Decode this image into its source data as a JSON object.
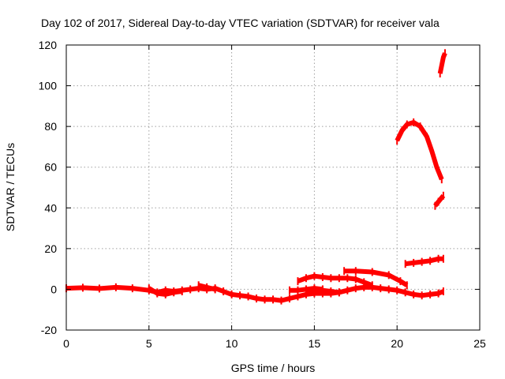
{
  "chart_data": {
    "type": "scatter",
    "title": "Day 102 of 2017, Sidereal Day-to-day VTEC variation (SDTVAR) for receiver vala",
    "xlabel": "GPS time / hours",
    "ylabel": "SDTVAR / TECUs",
    "xlim": [
      0,
      25
    ],
    "ylim": [
      -20,
      120
    ],
    "xticks": [
      "0",
      "5",
      "10",
      "15",
      "20",
      "25"
    ],
    "yticks": [
      "-20",
      "0",
      "20",
      "40",
      "60",
      "80",
      "100",
      "120"
    ],
    "grid": true,
    "legend": false,
    "series_color": "#ff0000",
    "series": [
      {
        "values": [
          [
            0,
            0.5
          ],
          [
            1,
            0.8
          ],
          [
            2,
            0.4
          ],
          [
            3,
            1
          ],
          [
            4,
            0.5
          ],
          [
            5,
            -0.5
          ],
          [
            5.5,
            -1.5
          ],
          [
            6,
            -0.5
          ],
          [
            6.5,
            -1
          ],
          [
            7,
            -0.5
          ],
          [
            7.5,
            0
          ],
          [
            8,
            0.5
          ],
          [
            8.5,
            0
          ],
          [
            9,
            0.5
          ],
          [
            9.5,
            -1
          ],
          [
            10,
            -2.5
          ],
          [
            10.5,
            -3
          ],
          [
            11,
            -3.5
          ],
          [
            11.5,
            -4.5
          ],
          [
            12,
            -5
          ],
          [
            12.5,
            -5
          ],
          [
            13,
            -5.5
          ],
          [
            13.5,
            -4.5
          ],
          [
            14,
            -3.5
          ],
          [
            14.5,
            -2.5
          ],
          [
            15,
            -2
          ],
          [
            15.5,
            -2
          ],
          [
            16,
            -2
          ],
          [
            16.5,
            -1.5
          ],
          [
            17,
            -0.5
          ],
          [
            17.5,
            0.5
          ],
          [
            18,
            1
          ],
          [
            18.5,
            1
          ],
          [
            19,
            0.5
          ],
          [
            19.5,
            0
          ],
          [
            20,
            -0.5
          ],
          [
            20.5,
            -1.5
          ],
          [
            21,
            -2.5
          ],
          [
            21.5,
            -3
          ],
          [
            22,
            -2.5
          ],
          [
            22.5,
            -2
          ],
          [
            22.8,
            -1
          ]
        ]
      },
      {
        "values": [
          [
            5,
            0.5
          ],
          [
            5.5,
            -2
          ],
          [
            6,
            -2.5
          ],
          [
            6.5,
            -1.5
          ],
          [
            7,
            -1
          ]
        ]
      },
      {
        "values": [
          [
            8,
            2
          ],
          [
            8.5,
            1
          ],
          [
            9,
            0
          ]
        ]
      },
      {
        "values": [
          [
            13.5,
            -0.5
          ],
          [
            14,
            -0.5
          ],
          [
            14.5,
            0
          ],
          [
            15,
            0.5
          ],
          [
            15.5,
            0
          ]
        ]
      },
      {
        "values": [
          [
            14.5,
            -1
          ],
          [
            15,
            -1
          ],
          [
            15.5,
            -0.5
          ],
          [
            16,
            -1
          ],
          [
            16.5,
            -1.5
          ]
        ]
      },
      {
        "values": [
          [
            14,
            4
          ],
          [
            14.5,
            5.5
          ],
          [
            15,
            6.5
          ],
          [
            15.5,
            6
          ],
          [
            16,
            5.5
          ],
          [
            16.5,
            5.5
          ],
          [
            17,
            5.5
          ],
          [
            17.5,
            5
          ],
          [
            18,
            3.5
          ],
          [
            18.5,
            2
          ]
        ]
      },
      {
        "values": [
          [
            16.8,
            9
          ],
          [
            17.5,
            9
          ],
          [
            18.5,
            8.5
          ],
          [
            19.5,
            7
          ],
          [
            20.2,
            4
          ],
          [
            20.6,
            2
          ]
        ]
      },
      {
        "values": [
          [
            20.5,
            12.5
          ],
          [
            21,
            13
          ],
          [
            21.5,
            13.5
          ],
          [
            22,
            14
          ],
          [
            22.5,
            15
          ],
          [
            22.8,
            15
          ]
        ]
      },
      {
        "values": [
          [
            22.3,
            41
          ],
          [
            22.5,
            43
          ],
          [
            22.8,
            46
          ]
        ]
      },
      {
        "values": [
          [
            20,
            73
          ],
          [
            20.3,
            78
          ],
          [
            20.6,
            81
          ],
          [
            21,
            82
          ],
          [
            21.4,
            80
          ],
          [
            21.8,
            75
          ],
          [
            22.1,
            68
          ],
          [
            22.4,
            60
          ],
          [
            22.7,
            54
          ]
        ]
      },
      {
        "values": [
          [
            22.6,
            106
          ],
          [
            22.7,
            110
          ],
          [
            22.8,
            114
          ],
          [
            22.9,
            116
          ]
        ]
      }
    ]
  }
}
